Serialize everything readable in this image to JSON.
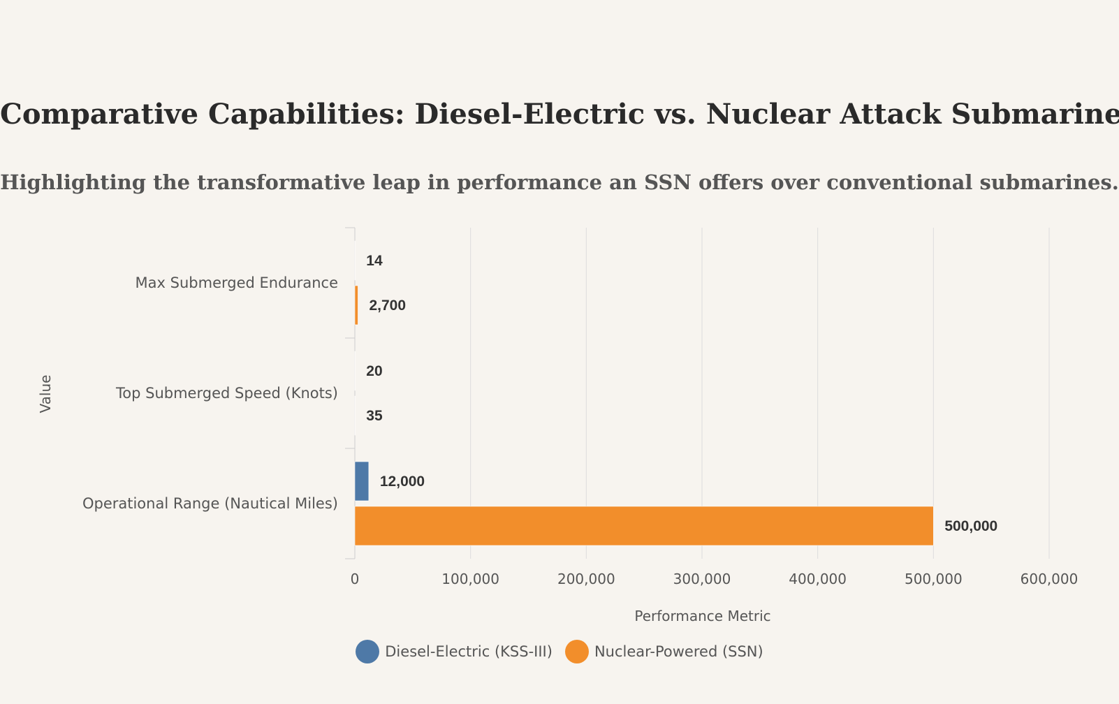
{
  "title": "Comparative Capabilities: Diesel-Electric vs. Nuclear Attack Submarine",
  "subtitle": "Highlighting the transformative leap in performance an SSN offers over conventional submarines.",
  "chart_data": {
    "type": "bar",
    "orientation": "horizontal",
    "categories": [
      "Max Submerged Endurance",
      "Top Submerged Speed (Knots)",
      "Operational Range (Nautical Miles)"
    ],
    "series": [
      {
        "name": "Diesel-Electric (KSS-III)",
        "color": "#4e79a7",
        "values": [
          14,
          20,
          12000
        ],
        "labels": [
          "14",
          "20",
          "12,000"
        ]
      },
      {
        "name": "Nuclear-Powered (SSN)",
        "color": "#f28e2b",
        "values": [
          2700,
          35,
          500000
        ],
        "labels": [
          "2,700",
          "35",
          "500,000"
        ]
      }
    ],
    "xlabel": "Performance Metric",
    "ylabel": "Value",
    "xlim": [
      0,
      600000
    ],
    "xticks": [
      0,
      100000,
      200000,
      300000,
      400000,
      500000,
      600000
    ],
    "xtick_labels": [
      "0",
      "100,000",
      "200,000",
      "300,000",
      "400,000",
      "500,000",
      "600,000"
    ],
    "grid": true,
    "legend_position": "bottom"
  }
}
